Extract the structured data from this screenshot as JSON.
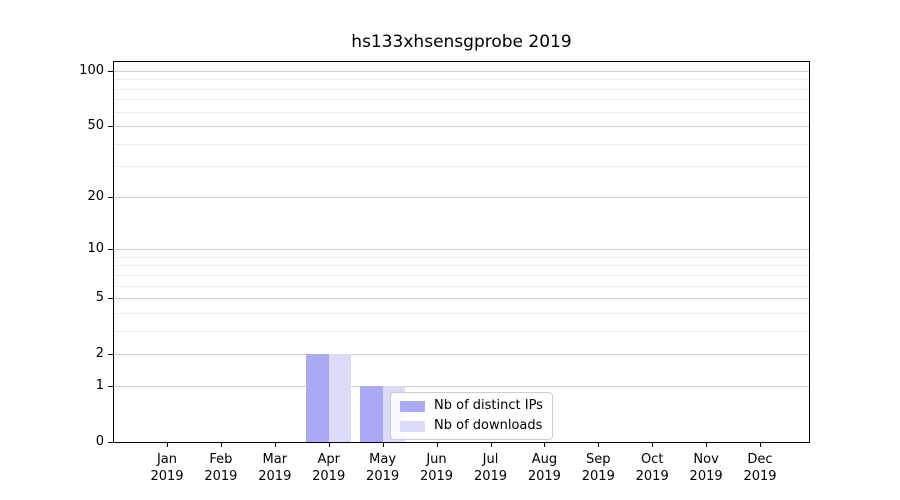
{
  "chart_data": {
    "type": "bar",
    "title": "hs133xhsensgprobe 2019",
    "categories": [
      "Jan",
      "Feb",
      "Mar",
      "Apr",
      "May",
      "Jun",
      "Jul",
      "Aug",
      "Sep",
      "Oct",
      "Nov",
      "Dec"
    ],
    "x_year_label": "2019",
    "series": [
      {
        "name": "Nb of distinct IPs",
        "color": "#a9a9f4",
        "values": [
          0,
          0,
          0,
          2,
          1,
          0,
          0,
          0,
          0,
          0,
          0,
          0
        ]
      },
      {
        "name": "Nb of downloads",
        "color": "#dcdcf9",
        "values": [
          0,
          0,
          0,
          2,
          1,
          0,
          0,
          0,
          0,
          0,
          0,
          0
        ]
      }
    ],
    "yscale": "log10(value+1)",
    "ylim": [
      0,
      112
    ],
    "yticks": [
      0,
      1,
      2,
      5,
      10,
      20,
      50,
      100
    ],
    "minor_gridlines": [
      3,
      4,
      6,
      7,
      8,
      9,
      30,
      40,
      60,
      70,
      80,
      90
    ],
    "grid": "horizontal",
    "legend_position": "lower center",
    "colors": {
      "major_grid": "#cfcfcf",
      "minor_grid": "#ededed",
      "axis": "#000000",
      "background": "#ffffff"
    }
  }
}
